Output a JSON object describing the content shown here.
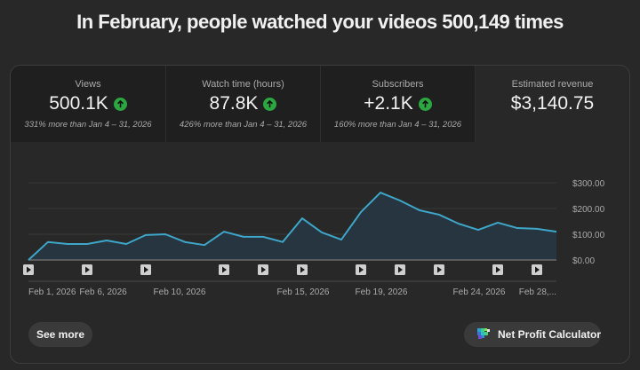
{
  "headline": "In February, people watched your videos 500,149 times",
  "metrics": [
    {
      "label": "Views",
      "value": "500.1K",
      "trend": "up",
      "delta": "331% more than Jan 4 – 31, 2026"
    },
    {
      "label": "Watch time (hours)",
      "value": "87.8K",
      "trend": "up",
      "delta": "426% more than Jan 4 – 31, 2026"
    },
    {
      "label": "Subscribers",
      "value": "+2.1K",
      "trend": "up",
      "delta": "160% more than Jan 4 – 31, 2026"
    },
    {
      "label": "Estimated revenue",
      "value": "$3,140.75",
      "trend": "none",
      "delta": ""
    }
  ],
  "colors": {
    "background": "#282828",
    "metric_card": "#1f1f1f",
    "up_badge": "#2ba640",
    "line": "#3ea6c8",
    "area": "#263540"
  },
  "chart_data": {
    "type": "area",
    "title": "Estimated revenue",
    "xlabel": "",
    "ylabel": "",
    "ylim": [
      0,
      300
    ],
    "y_ticks": [
      "$0.00",
      "$100.00",
      "$200.00",
      "$300.00"
    ],
    "x_tick_labels": [
      "Feb 1, 2026",
      "Feb 6, 2026",
      "Feb 10, 2026",
      "Feb 15, 2026",
      "Feb 19, 2026",
      "Feb 24, 2026",
      "Feb 28,..."
    ],
    "grid": true,
    "legend": "none",
    "x": [
      "Jan 31",
      "Feb 1",
      "Feb 2",
      "Feb 3",
      "Feb 4",
      "Feb 5",
      "Feb 6",
      "Feb 7",
      "Feb 8",
      "Feb 9",
      "Feb 10",
      "Feb 11",
      "Feb 12",
      "Feb 13",
      "Feb 14",
      "Feb 15",
      "Feb 16",
      "Feb 17",
      "Feb 18",
      "Feb 19",
      "Feb 20",
      "Feb 21",
      "Feb 22",
      "Feb 23",
      "Feb 24",
      "Feb 25",
      "Feb 26",
      "Feb 27"
    ],
    "values": [
      0,
      70,
      62,
      62,
      76,
      62,
      97,
      100,
      70,
      58,
      110,
      90,
      90,
      70,
      162,
      107,
      79,
      186,
      262,
      231,
      193,
      176,
      141,
      117,
      145,
      124,
      121,
      110
    ],
    "video_marker_indices": [
      0,
      3,
      6,
      10,
      12,
      14,
      17,
      19,
      21,
      24,
      26
    ]
  },
  "buttons": {
    "see_more": "See more",
    "net_profit_calculator": "Net Profit Calculator"
  }
}
